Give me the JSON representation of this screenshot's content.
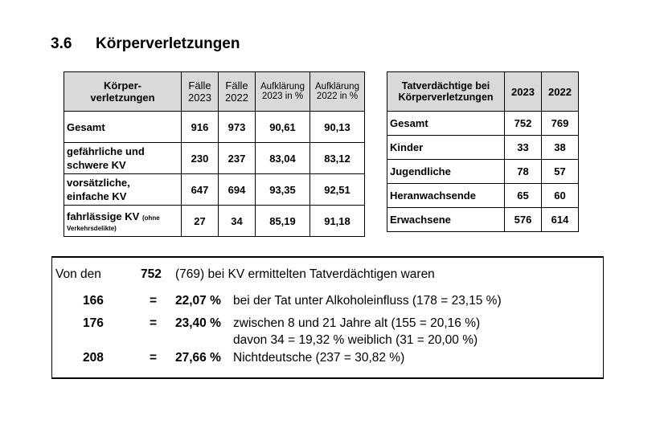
{
  "heading": {
    "number": "3.6",
    "title": "Körperverletzungen"
  },
  "table1": {
    "headers": {
      "c1a": "Körper-",
      "c1b": "verletzungen",
      "c2a": "Fälle",
      "c2b": "2023",
      "c3a": "Fälle",
      "c3b": "2022",
      "c4a": "Aufklärung",
      "c4b": "2023 in %",
      "c5a": "Aufklärung",
      "c5b": "2022 in %"
    },
    "rows": [
      {
        "label1": "Gesamt",
        "label2": "",
        "note1": "",
        "note2": "",
        "v1": "916",
        "v2": "973",
        "v3": "90,61",
        "v4": "90,13"
      },
      {
        "label1": "gefährliche und",
        "label2": "schwere KV",
        "note1": "",
        "note2": "",
        "v1": "230",
        "v2": "237",
        "v3": "83,04",
        "v4": "83,12"
      },
      {
        "label1": "vorsätzliche,",
        "label2": "einfache KV",
        "note1": "",
        "note2": "",
        "v1": "647",
        "v2": "694",
        "v3": "93,35",
        "v4": "92,51"
      },
      {
        "label1": "fahrlässige KV",
        "label2": "",
        "note1": "(ohne",
        "note2": "Verkehrsdelikte)",
        "v1": "27",
        "v2": "34",
        "v3": "85,19",
        "v4": "91,18"
      }
    ]
  },
  "table2": {
    "headers": {
      "c1a": "Tatverdächtige bei",
      "c1b": "Körperverletzungen",
      "c2": "2023",
      "c3": "2022"
    },
    "rows": [
      {
        "label": "Gesamt",
        "v1": "752",
        "v2": "769"
      },
      {
        "label": "Kinder",
        "v1": "33",
        "v2": "38"
      },
      {
        "label": "Jugendliche",
        "v1": "78",
        "v2": "57"
      },
      {
        "label": "Heranwachsende",
        "v1": "65",
        "v2": "60"
      },
      {
        "label": "Erwachsene",
        "v1": "576",
        "v2": "614"
      }
    ]
  },
  "summary": {
    "intro_a": "Von den",
    "intro_num": "752",
    "intro_b": "(769) bei KV ermittelten Tatverdächtigen waren",
    "eq": "=",
    "rows": [
      {
        "count": "166",
        "pct": "22,07 %",
        "text": "bei der Tat unter Alkoholeinfluss (178 = 23,15 %)",
        "sub": ""
      },
      {
        "count": "176",
        "pct": "23,40 %",
        "text": "zwischen 8 und 21 Jahre alt (155 = 20,16 %)",
        "sub": "davon 34 = 19,32 % weiblich (31 = 20,00 %)"
      },
      {
        "count": "208",
        "pct": "27,66 %",
        "text": "Nichtdeutsche (237 = 30,82 %)",
        "sub": ""
      }
    ]
  }
}
